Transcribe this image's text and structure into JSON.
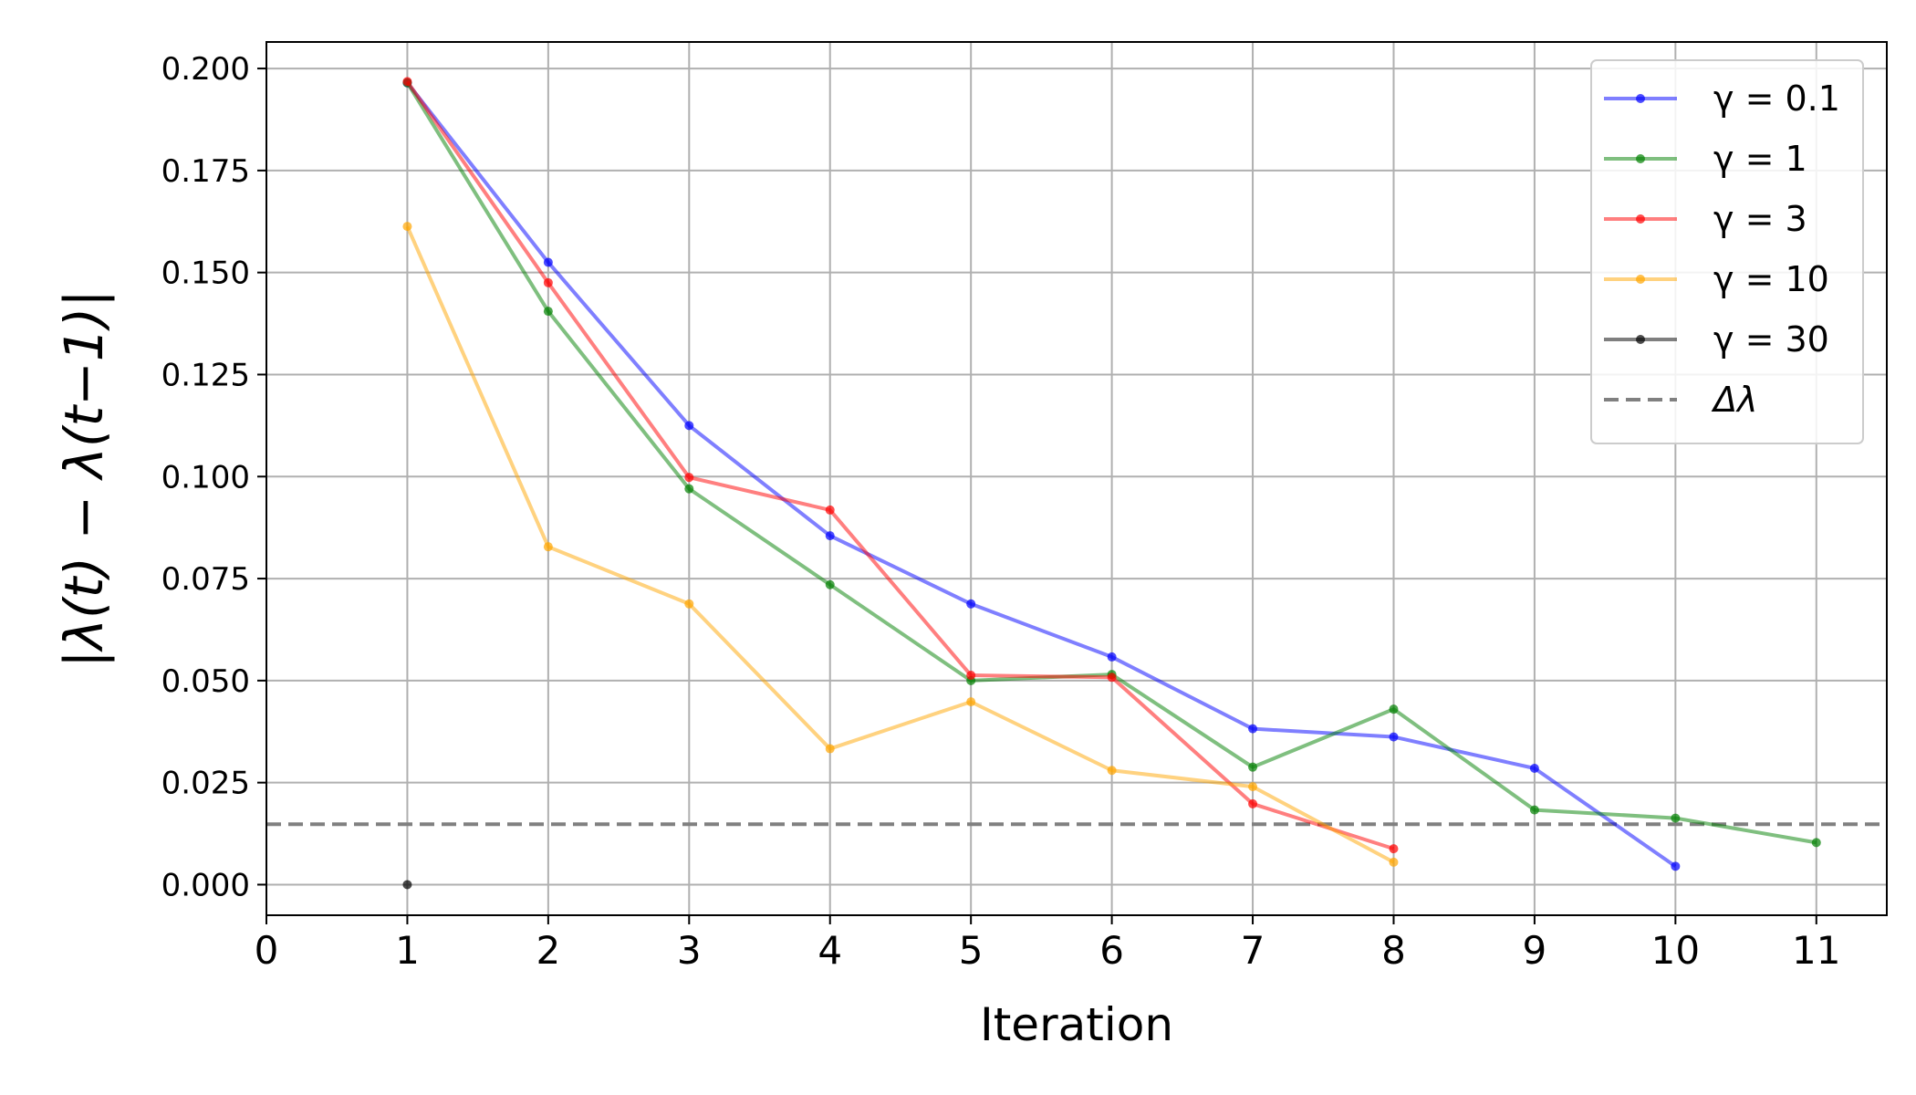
{
  "chart_data": {
    "type": "line",
    "xlabel": "Iteration",
    "ylabel": "|λ(t) − λ(t−1)|",
    "xlim": [
      0,
      11.5
    ],
    "ylim": [
      -0.0075,
      0.2065
    ],
    "x_ticks": [
      0,
      1,
      2,
      3,
      4,
      5,
      6,
      7,
      8,
      9,
      10,
      11
    ],
    "x_tick_labels": [
      "0",
      "1",
      "2",
      "3",
      "4",
      "5",
      "6",
      "7",
      "8",
      "9",
      "10",
      "11"
    ],
    "y_ticks": [
      0.0,
      0.025,
      0.05,
      0.075,
      0.1,
      0.125,
      0.15,
      0.175,
      0.2
    ],
    "y_tick_labels": [
      "0.000",
      "0.025",
      "0.050",
      "0.075",
      "0.100",
      "0.125",
      "0.150",
      "0.175",
      "0.200"
    ],
    "grid": true,
    "legend_position": "top-right",
    "series": [
      {
        "name": "γ = 0.1",
        "color": "#0000ff",
        "x": [
          1,
          2,
          3,
          4,
          5,
          6,
          7,
          8,
          9,
          10
        ],
        "values": [
          0.1965,
          0.1525,
          0.1125,
          0.0855,
          0.0688,
          0.0558,
          0.0382,
          0.0362,
          0.0285,
          0.0045
        ]
      },
      {
        "name": "γ = 1",
        "color": "#008000",
        "x": [
          1,
          2,
          3,
          4,
          5,
          6,
          7,
          8,
          9,
          10,
          11
        ],
        "values": [
          0.1965,
          0.1405,
          0.097,
          0.0735,
          0.05,
          0.0515,
          0.0288,
          0.043,
          0.0183,
          0.0163,
          0.0103
        ]
      },
      {
        "name": "γ = 3",
        "color": "#ff0000",
        "x": [
          1,
          2,
          3,
          4,
          5,
          6,
          7,
          8
        ],
        "values": [
          0.1968,
          0.1475,
          0.0998,
          0.0918,
          0.0513,
          0.0508,
          0.0198,
          0.0088
        ]
      },
      {
        "name": "γ = 10",
        "color": "#ffa500",
        "x": [
          1,
          2,
          3,
          4,
          5,
          6,
          7,
          8
        ],
        "values": [
          0.1613,
          0.0828,
          0.0688,
          0.0333,
          0.0448,
          0.028,
          0.024,
          0.0055
        ]
      },
      {
        "name": "γ = 30",
        "color": "#000000",
        "x": [
          1
        ],
        "values": [
          0.0
        ]
      }
    ],
    "reference_line": {
      "name": "Δλ",
      "value": 0.0148,
      "color": "#808080",
      "style": "dashed"
    }
  }
}
